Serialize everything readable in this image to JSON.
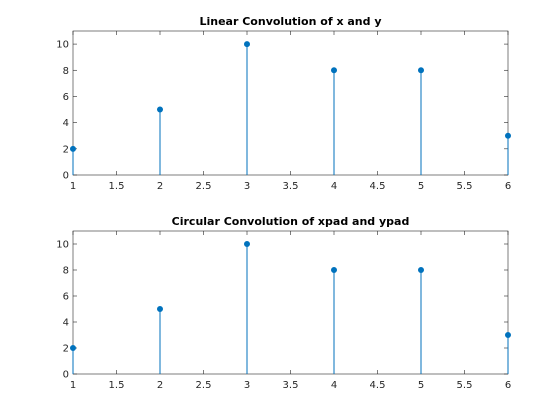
{
  "chart_data": [
    {
      "type": "stem",
      "title": "Linear Convolution of x and y",
      "x": [
        1,
        2,
        3,
        4,
        5,
        6
      ],
      "values": [
        2,
        5,
        10,
        8,
        8,
        3
      ],
      "xlabel": "",
      "ylabel": "",
      "xlim": [
        1,
        6
      ],
      "ylim": [
        0,
        11
      ],
      "xticks": [
        "1",
        "1.5",
        "2",
        "2.5",
        "3",
        "3.5",
        "4",
        "4.5",
        "5",
        "5.5",
        "6"
      ],
      "yticks": [
        "0",
        "2",
        "4",
        "6",
        "8",
        "10"
      ],
      "grid": false,
      "color": "#0072bd"
    },
    {
      "type": "stem",
      "title": "Circular Convolution of xpad and ypad",
      "x": [
        1,
        2,
        3,
        4,
        5,
        6
      ],
      "values": [
        2,
        5,
        10,
        8,
        8,
        3
      ],
      "xlabel": "",
      "ylabel": "",
      "xlim": [
        1,
        6
      ],
      "ylim": [
        0,
        11
      ],
      "xticks": [
        "1",
        "1.5",
        "2",
        "2.5",
        "3",
        "3.5",
        "4",
        "4.5",
        "5",
        "5.5",
        "6"
      ],
      "yticks": [
        "0",
        "2",
        "4",
        "6",
        "8",
        "10"
      ],
      "grid": false,
      "color": "#0072bd"
    }
  ]
}
